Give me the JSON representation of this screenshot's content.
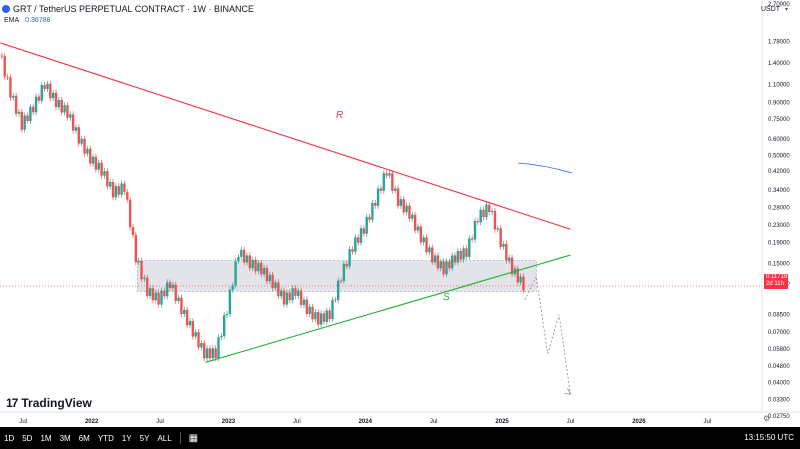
{
  "header": {
    "title": "GRT / TetherUS PERPETUAL CONTRACT · 1W · BINANCE",
    "ema_label": "EMA",
    "ema_value": "0.36788",
    "currency": "USDT"
  },
  "brand": {
    "name": "TradingView"
  },
  "toolbar": {
    "ranges": [
      "1D",
      "5D",
      "1M",
      "3M",
      "6M",
      "YTD",
      "1Y",
      "5Y",
      "ALL"
    ],
    "time": "13:15:50 UTC"
  },
  "last_price": {
    "value": "0.11718",
    "countdown": "2d 11h"
  },
  "colors": {
    "up": "#26a69a",
    "down": "#ef5350",
    "resistance": "#f23645",
    "support": "#22b33a",
    "zone": "#d1d4dc",
    "ema": "#2962ff"
  },
  "chart_data": {
    "type": "line",
    "series": [
      {
        "values": [
          [
            "2021-05",
            1.6
          ],
          [
            "2021-06",
            1.0
          ],
          [
            "2021-07",
            0.7
          ],
          [
            "2021-08",
            0.85
          ],
          [
            "2021-09",
            1.1
          ],
          [
            "2021-10",
            0.9
          ],
          [
            "2021-11",
            0.8
          ],
          [
            "2021-12",
            0.6
          ],
          [
            "2022-01",
            0.48
          ],
          [
            "2022-02",
            0.42
          ],
          [
            "2022-03",
            0.33
          ],
          [
            "2022-04",
            0.35
          ],
          [
            "2022-05",
            0.16
          ],
          [
            "2022-06",
            0.11
          ],
          [
            "2022-07",
            0.1
          ],
          [
            "2022-08",
            0.12
          ],
          [
            "2022-09",
            0.09
          ],
          [
            "2022-10",
            0.07
          ],
          [
            "2022-11",
            0.055
          ],
          [
            "2022-12",
            0.055
          ],
          [
            "2023-01",
            0.09
          ],
          [
            "2023-02",
            0.17
          ],
          [
            "2023-03",
            0.15
          ],
          [
            "2023-04",
            0.14
          ],
          [
            "2023-05",
            0.12
          ],
          [
            "2023-06",
            0.1
          ],
          [
            "2023-07",
            0.11
          ],
          [
            "2023-08",
            0.09
          ],
          [
            "2023-09",
            0.08
          ],
          [
            "2023-10",
            0.085
          ],
          [
            "2023-11",
            0.13
          ],
          [
            "2023-12",
            0.18
          ],
          [
            "2024-01",
            0.22
          ],
          [
            "2024-02",
            0.3
          ],
          [
            "2024-03",
            0.42
          ],
          [
            "2024-04",
            0.3
          ],
          [
            "2024-05",
            0.26
          ],
          [
            "2024-06",
            0.2
          ],
          [
            "2024-07",
            0.16
          ],
          [
            "2024-08",
            0.14
          ],
          [
            "2024-09",
            0.16
          ],
          [
            "2024-10",
            0.17
          ],
          [
            "2024-11",
            0.25
          ],
          [
            "2024-12",
            0.28
          ],
          [
            "2025-01",
            0.19
          ],
          [
            "2025-02",
            0.14
          ],
          [
            "2025-03",
            0.117
          ]
        ]
      }
    ],
    "x_tick_labels": [
      "Jul",
      "2022",
      "Jul",
      "2023",
      "Jul",
      "2024",
      "Jul",
      "2025",
      "Jul",
      "2026",
      "Jul"
    ],
    "y_tick_labels": [
      "2.70000",
      "1.78000",
      "1.40000",
      "1.10000",
      "0.90000",
      "0.75000",
      "0.60000",
      "0.50000",
      "0.42000",
      "0.34000",
      "0.28000",
      "0.23000",
      "0.19000",
      "0.15000",
      "0.12000",
      "0.08500",
      "0.07000",
      "0.05800",
      "0.04800",
      "0.04000",
      "0.03300",
      "0.02750"
    ],
    "y_scale": "log",
    "ylim": [
      0.0275,
      2.7
    ],
    "annotations": {
      "resistance_label": "R",
      "support_label": "S",
      "resistance_line": {
        "from": [
          "2021-05",
          1.75
        ],
        "to": [
          "2025-07",
          0.22
        ]
      },
      "support_line": {
        "from": [
          "2022-11",
          0.05
        ],
        "to": [
          "2025-07",
          0.165
        ]
      },
      "zone": {
        "from": "2022-05",
        "to": "2025-04",
        "y_top": 0.155,
        "y_bottom": 0.11
      },
      "projection": [
        [
          "2025-03",
          0.1
        ],
        [
          "2025-04",
          0.13
        ],
        [
          "2025-05",
          0.055
        ],
        [
          "2025-06",
          0.085
        ],
        [
          "2025-07",
          0.035
        ]
      ]
    }
  }
}
